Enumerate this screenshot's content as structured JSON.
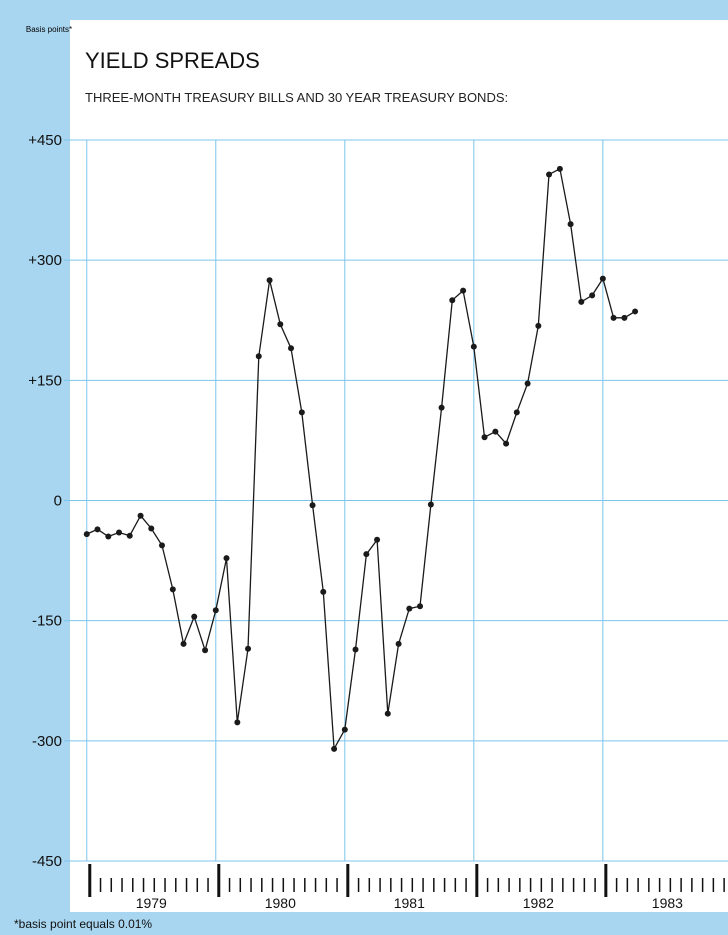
{
  "chart_data": {
    "type": "line",
    "title": "YIELD SPREADS",
    "subtitle": "THREE-MONTH TREASURY BILLS AND 30 YEAR TREASURY BONDS:",
    "y_label": "Basis points*",
    "footnote": "*basis point equals 0.01%",
    "categories": [
      "1979",
      "1980",
      "1981",
      "1982",
      "1983"
    ],
    "x": [
      1979,
      1979.083,
      1979.167,
      1979.25,
      1979.333,
      1979.417,
      1979.5,
      1979.583,
      1979.667,
      1979.75,
      1979.833,
      1979.917,
      1980,
      1980.083,
      1980.167,
      1980.25,
      1980.333,
      1980.417,
      1980.5,
      1980.583,
      1980.667,
      1980.75,
      1980.833,
      1980.917,
      1981,
      1981.083,
      1981.167,
      1981.25,
      1981.333,
      1981.417,
      1981.5,
      1981.583,
      1981.667,
      1981.75,
      1981.833,
      1981.917,
      1982,
      1982.083,
      1982.167,
      1982.25,
      1982.333,
      1982.417,
      1982.5,
      1982.583,
      1982.667,
      1982.75,
      1982.833,
      1982.917,
      1983,
      1983.083,
      1983.167,
      1983.25
    ],
    "values": [
      -42,
      -36,
      -45,
      -40,
      -44,
      -19,
      -35,
      -56,
      -111,
      -179,
      -145,
      -187,
      -137,
      -72,
      -277,
      -185,
      180,
      275,
      220,
      190,
      110,
      -6,
      -114,
      -310,
      -286,
      -186,
      -67,
      -49,
      -266,
      -179,
      -135,
      -132,
      -5,
      116,
      250,
      262,
      192,
      79,
      86,
      71,
      110,
      146,
      218,
      407,
      414,
      345,
      248,
      256,
      277,
      228,
      228,
      236
    ],
    "color": "#1a1a1a",
    "grid_color": "#7cc4ec",
    "xlim": [
      1978.87,
      1983.97
    ],
    "xticks": [
      1979,
      1980,
      1981,
      1982,
      1983
    ],
    "ylim": [
      -450,
      450
    ],
    "yticks": [
      {
        "value": 450,
        "label": "+450"
      },
      {
        "value": 300,
        "label": "+300"
      },
      {
        "value": 150,
        "label": "+150"
      },
      0,
      -150,
      -300,
      -450
    ],
    "grid": true
  }
}
